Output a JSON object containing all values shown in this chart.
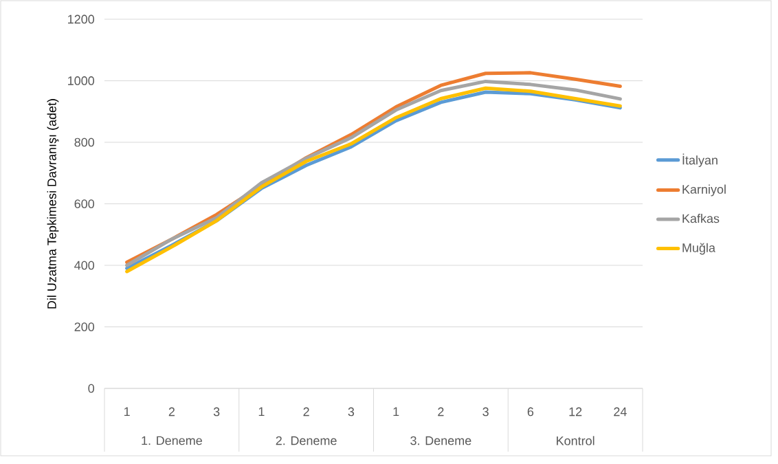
{
  "chart_data": {
    "type": "line",
    "ylabel": "Dil Uzatma Tepkimesi Davranışı (adet)",
    "categories": [
      "1",
      "2",
      "3",
      "1",
      "2",
      "3",
      "1",
      "2",
      "3",
      "6",
      "12",
      "24"
    ],
    "annotations": [
      "1. Deneme",
      "2. Deneme",
      "3. Deneme",
      "Kontrol"
    ],
    "series": [
      {
        "name": "İtalyan",
        "color": "#5b9bd5",
        "values": [
          390,
          465,
          545,
          650,
          725,
          785,
          870,
          930,
          963,
          958,
          938,
          912
        ]
      },
      {
        "name": "Karniyol",
        "color": "#ed7d31",
        "values": [
          410,
          485,
          565,
          660,
          750,
          825,
          915,
          985,
          1024,
          1026,
          1005,
          982
        ]
      },
      {
        "name": "Kafkas",
        "color": "#a5a5a5",
        "values": [
          400,
          485,
          555,
          668,
          748,
          815,
          905,
          968,
          998,
          988,
          970,
          941
        ]
      },
      {
        "name": "Muğla",
        "color": "#ffc000",
        "values": [
          380,
          460,
          545,
          655,
          738,
          795,
          880,
          942,
          976,
          966,
          942,
          918
        ]
      }
    ],
    "ylim": [
      0,
      1200
    ],
    "yticks": [
      0,
      200,
      400,
      600,
      800,
      1000,
      1200
    ],
    "grid": "y",
    "legend": "right"
  }
}
